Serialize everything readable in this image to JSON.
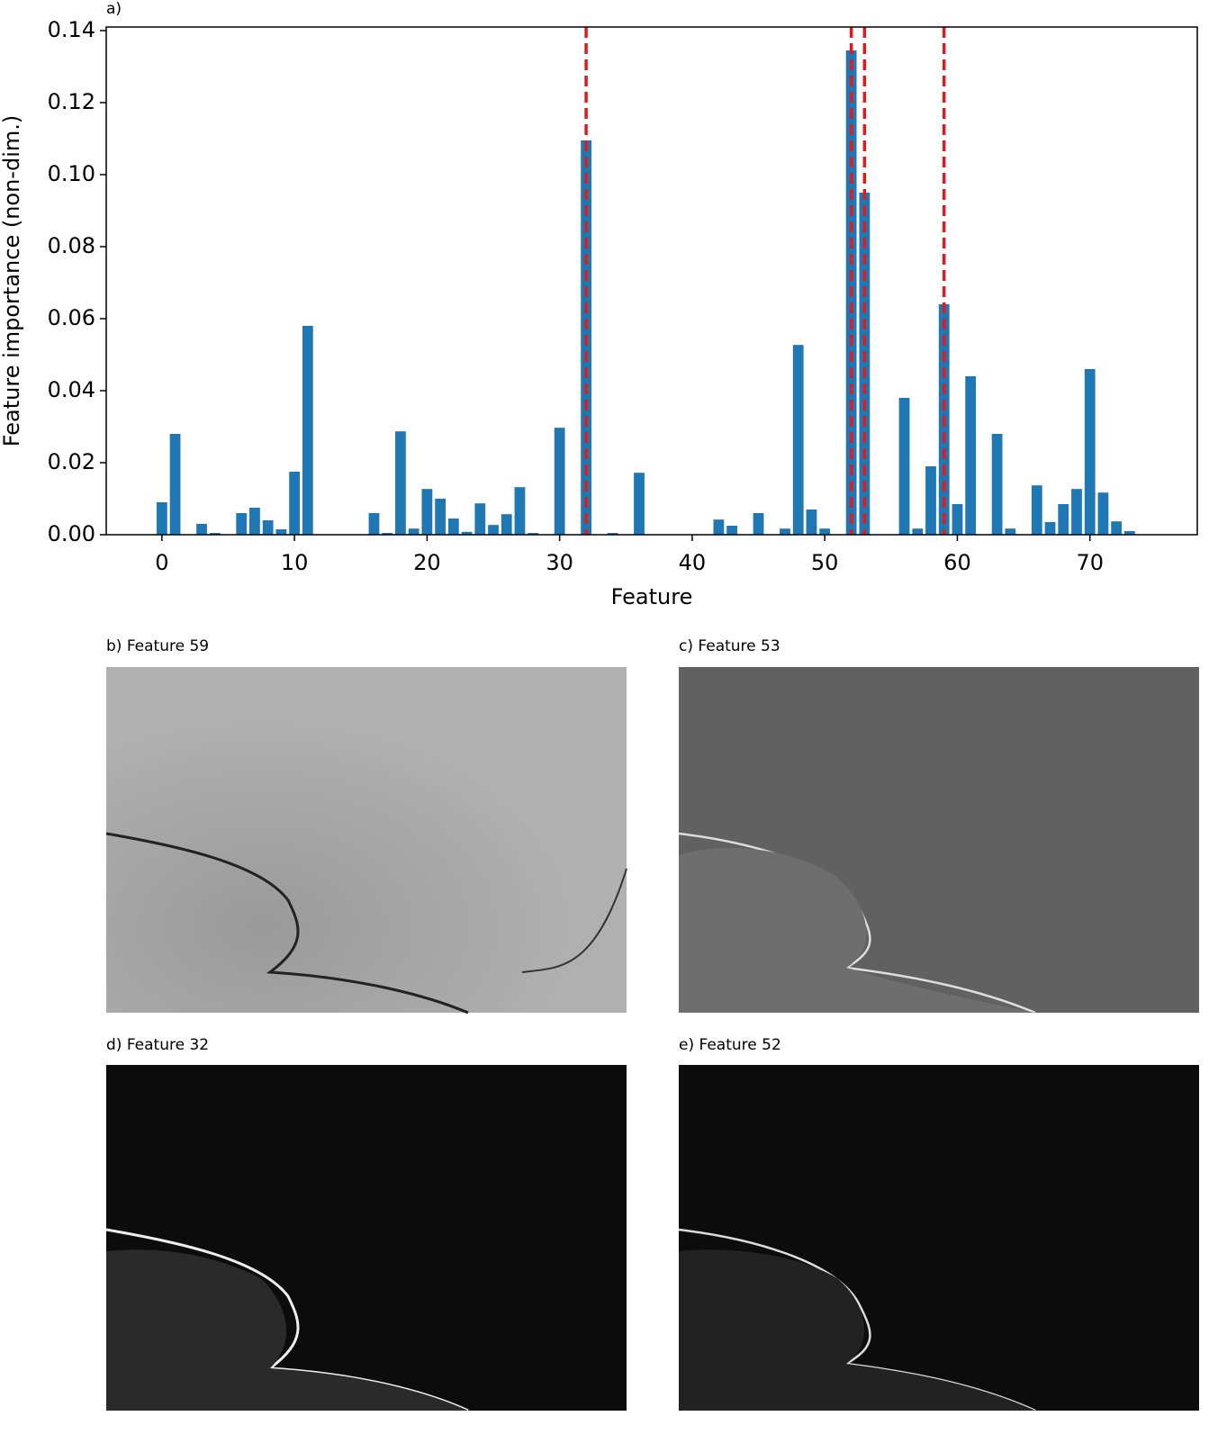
{
  "chart_data": {
    "type": "bar",
    "panel_label": "a)",
    "x_label": "Feature",
    "y_label": "Feature importance (non-dim.)",
    "x": [
      0,
      1,
      2,
      3,
      4,
      5,
      6,
      7,
      8,
      9,
      10,
      11,
      12,
      13,
      14,
      15,
      16,
      17,
      18,
      19,
      20,
      21,
      22,
      23,
      24,
      25,
      26,
      27,
      28,
      29,
      30,
      31,
      32,
      33,
      34,
      35,
      36,
      37,
      38,
      39,
      40,
      41,
      42,
      43,
      44,
      45,
      46,
      47,
      48,
      49,
      50,
      51,
      52,
      53,
      54,
      55,
      56,
      57,
      58,
      59,
      60,
      61,
      62,
      63,
      64,
      65,
      66,
      67,
      68,
      69,
      70,
      71,
      72,
      73
    ],
    "values": [
      0.009,
      0.028,
      0,
      0.003,
      0.0005,
      0,
      0.006,
      0.0075,
      0.004,
      0.0015,
      0.0175,
      0.058,
      0,
      0,
      0,
      0,
      0.006,
      0.0005,
      0.0287,
      0.0017,
      0.0127,
      0.01,
      0.0045,
      0.0008,
      0.0087,
      0.0027,
      0.0057,
      0.0132,
      0.0005,
      0,
      0.0297,
      0,
      0.1095,
      0,
      0.0005,
      0,
      0.0172,
      0,
      0,
      0,
      0,
      0,
      0.0042,
      0.0025,
      0,
      0.006,
      0,
      0.0017,
      0.0527,
      0.007,
      0.0017,
      0,
      0.1345,
      0.095,
      0,
      0,
      0.038,
      0.0017,
      0.019,
      0.064,
      0.0085,
      0.044,
      0,
      0.028,
      0.0017,
      0,
      0.0137,
      0.0035,
      0.0085,
      0.0127,
      0.046,
      0.0117,
      0.0037,
      0.001
    ],
    "color": "#1f77b4",
    "vlines": [
      32,
      52,
      53,
      59
    ],
    "vline_color": "#e31a1c",
    "xlim": [
      -4.2,
      78.1
    ],
    "ylim": [
      0,
      0.141
    ],
    "xticks": [
      0,
      10,
      20,
      30,
      40,
      50,
      60,
      70
    ],
    "yticks": [
      {
        "value": 0,
        "label": "0.00"
      },
      {
        "value": 0.02,
        "label": "0.02"
      },
      {
        "value": 0.04,
        "label": "0.04"
      },
      {
        "value": 0.06,
        "label": "0.06"
      },
      {
        "value": 0.08,
        "label": "0.08"
      },
      {
        "value": 0.1,
        "label": "0.10"
      },
      {
        "value": 0.12,
        "label": "0.12"
      },
      {
        "value": 0.14,
        "label": "0.14"
      }
    ],
    "grid": false
  },
  "panels": [
    {
      "label": "b) Feature 59"
    },
    {
      "label": "c) Feature 53"
    },
    {
      "label": "d) Feature 32"
    },
    {
      "label": "e) Feature 52"
    }
  ]
}
